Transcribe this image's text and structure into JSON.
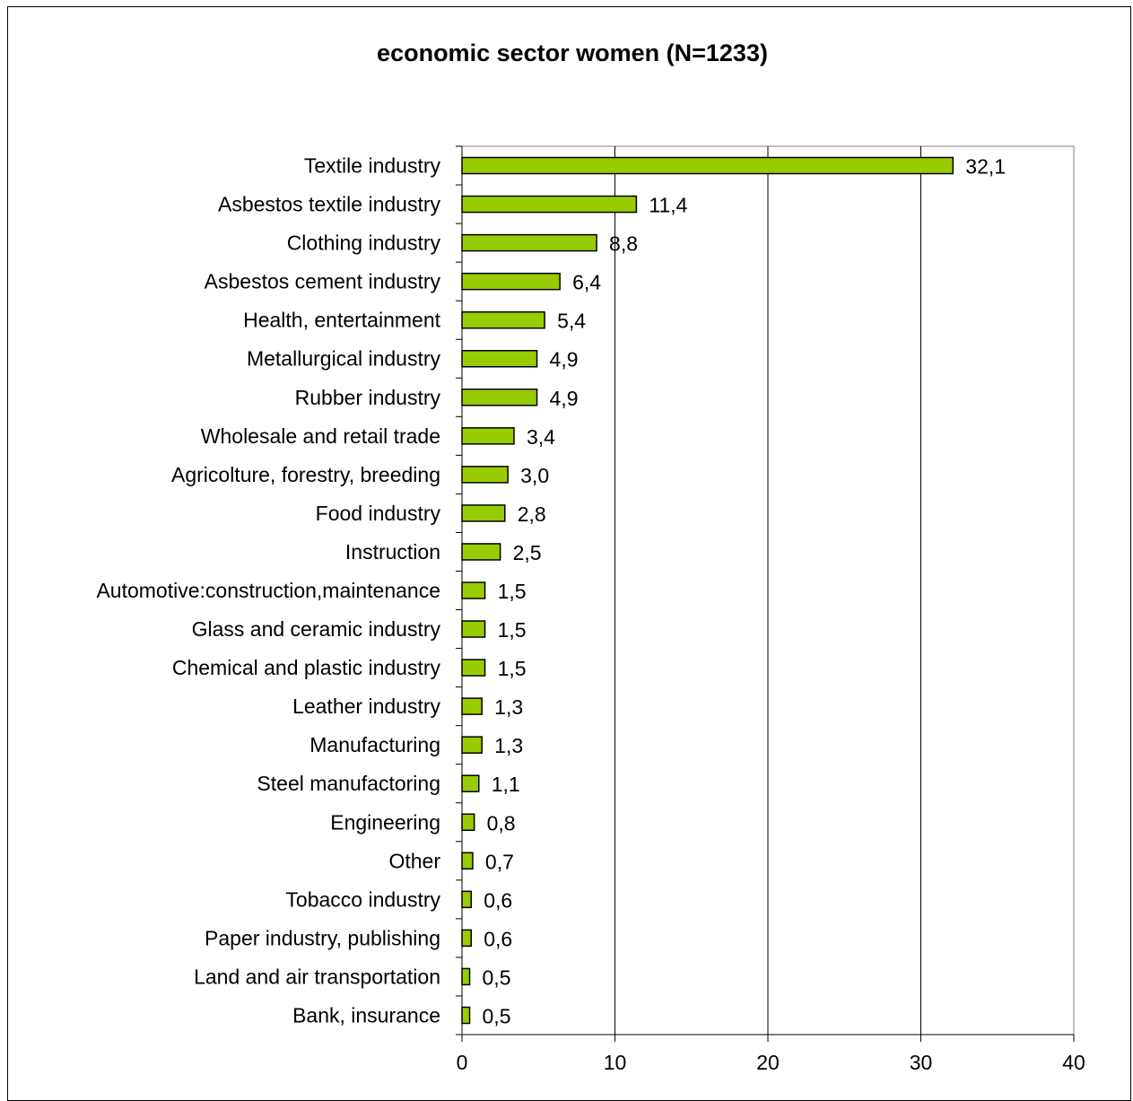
{
  "chart_data": {
    "type": "bar",
    "orientation": "horizontal",
    "title": "economic sector women (N=1233)",
    "xlabel": "",
    "ylabel": "",
    "xlim": [
      0,
      40
    ],
    "xticks": [
      "0",
      "10",
      "20",
      "30",
      "40"
    ],
    "grid": "vertical gridlines",
    "legend": "none",
    "bar_color": "#99cc00",
    "bar_edge_color": "#000000",
    "categories": [
      "Textile industry",
      "Asbestos textile industry",
      "Clothing industry",
      "Asbestos cement industry",
      "Health, entertainment",
      "Metallurgical industry",
      "Rubber industry",
      "Wholesale and retail trade",
      "Agricolture, forestry, breeding",
      "Food industry",
      "Instruction",
      "Automotive:construction,maintenance",
      "Glass and ceramic industry",
      "Chemical and plastic industry",
      "Leather industry",
      "Manufacturing",
      "Steel manufactoring",
      "Engineering",
      "Other",
      "Tobacco industry",
      "Paper industry, publishing",
      "Land and air transportation",
      "Bank, insurance"
    ],
    "values": [
      32.1,
      11.4,
      8.8,
      6.4,
      5.4,
      4.9,
      4.9,
      3.4,
      3.0,
      2.8,
      2.5,
      1.5,
      1.5,
      1.5,
      1.3,
      1.3,
      1.1,
      0.8,
      0.7,
      0.6,
      0.6,
      0.5,
      0.5
    ],
    "value_labels": [
      "32,1",
      "11,4",
      "8,8",
      "6,4",
      "5,4",
      "4,9",
      "4,9",
      "3,4",
      "3,0",
      "2,8",
      "2,5",
      "1,5",
      "1,5",
      "1,5",
      "1,3",
      "1,3",
      "1,1",
      "0,8",
      "0,7",
      "0,6",
      "0,6",
      "0,5",
      "0,5"
    ]
  }
}
